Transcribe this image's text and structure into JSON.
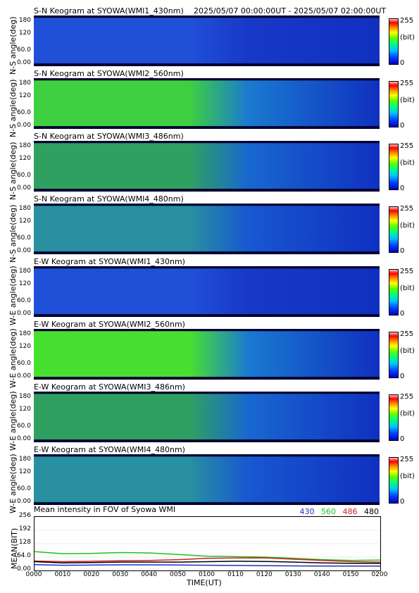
{
  "header": {
    "range": "2025/05/07 00:00:00UT - 2025/05/07 02:00:00UT"
  },
  "panels": [
    {
      "title": "S-N Keogram at SYOWA(WMI1_430nm)",
      "ylabel": "N-S angle(deg)",
      "base": "#1838c8",
      "hot": "#2050d8"
    },
    {
      "title": "S-N Keogram at SYOWA(WMI2_560nm)",
      "ylabel": "N-S angle(deg)",
      "base": "#1a7ad0",
      "hot": "#3ed040"
    },
    {
      "title": "S-N Keogram at SYOWA(WMI3_486nm)",
      "ylabel": "N-S angle(deg)",
      "base": "#1868d0",
      "hot": "#30a060"
    },
    {
      "title": "S-N Keogram at SYOWA(WMI4_480nm)",
      "ylabel": "N-S angle(deg)",
      "base": "#1858d0",
      "hot": "#2890a0"
    },
    {
      "title": "E-W Keogram at SYOWA(WMI1_430nm)",
      "ylabel": "W-E angle(deg)",
      "base": "#1838c8",
      "hot": "#2050d8"
    },
    {
      "title": "E-W Keogram at SYOWA(WMI2_560nm)",
      "ylabel": "W-E angle(deg)",
      "base": "#1a7ad0",
      "hot": "#48e030"
    },
    {
      "title": "E-W Keogram at SYOWA(WMI3_486nm)",
      "ylabel": "W-E angle(deg)",
      "base": "#1868d0",
      "hot": "#30a060"
    },
    {
      "title": "E-W Keogram at SYOWA(WMI4_480nm)",
      "ylabel": "W-E angle(deg)",
      "base": "#1858d0",
      "hot": "#2890a0"
    }
  ],
  "yticks": [
    "180",
    "120",
    "60.0",
    "0.00"
  ],
  "colorbar": {
    "max": "255",
    "unit": "(bit)",
    "min": "0"
  },
  "mean": {
    "title": "Mean intensity in FOV of Syowa WMI",
    "ylabel": "MEAN(BIT)",
    "yticks": [
      "256",
      "192",
      "128",
      "64.0",
      "0.00"
    ],
    "legend": [
      {
        "label": "430",
        "color": "#2030c0"
      },
      {
        "label": "560",
        "color": "#20c020"
      },
      {
        "label": "486",
        "color": "#d02020"
      },
      {
        "label": "480",
        "color": "#000000"
      }
    ]
  },
  "xaxis": {
    "label": "TIME(UT)",
    "ticks": [
      "0000",
      "0010",
      "0020",
      "0030",
      "0040",
      "0050",
      "0100",
      "0110",
      "0120",
      "0130",
      "0140",
      "0150",
      "0200"
    ]
  },
  "chart_data": {
    "type": "line",
    "title": "Mean intensity in FOV of Syowa WMI",
    "xlabel": "TIME(UT)",
    "ylabel": "MEAN(BIT)",
    "ylim": [
      0,
      256
    ],
    "x": [
      "0000",
      "0010",
      "0020",
      "0030",
      "0040",
      "0050",
      "0100",
      "0110",
      "0120",
      "0130",
      "0140",
      "0150",
      "0200"
    ],
    "series": [
      {
        "name": "430",
        "values": [
          28,
          25,
          26,
          27,
          27,
          26,
          25,
          24,
          23,
          22,
          21,
          21,
          21
        ]
      },
      {
        "name": "560",
        "values": [
          90,
          80,
          82,
          86,
          84,
          76,
          68,
          66,
          64,
          58,
          52,
          48,
          50
        ]
      },
      {
        "name": "486",
        "values": [
          45,
          42,
          44,
          46,
          48,
          52,
          58,
          60,
          60,
          54,
          48,
          42,
          40
        ]
      },
      {
        "name": "480",
        "values": [
          42,
          36,
          38,
          40,
          40,
          40,
          42,
          44,
          43,
          40,
          36,
          34,
          34
        ]
      }
    ]
  }
}
